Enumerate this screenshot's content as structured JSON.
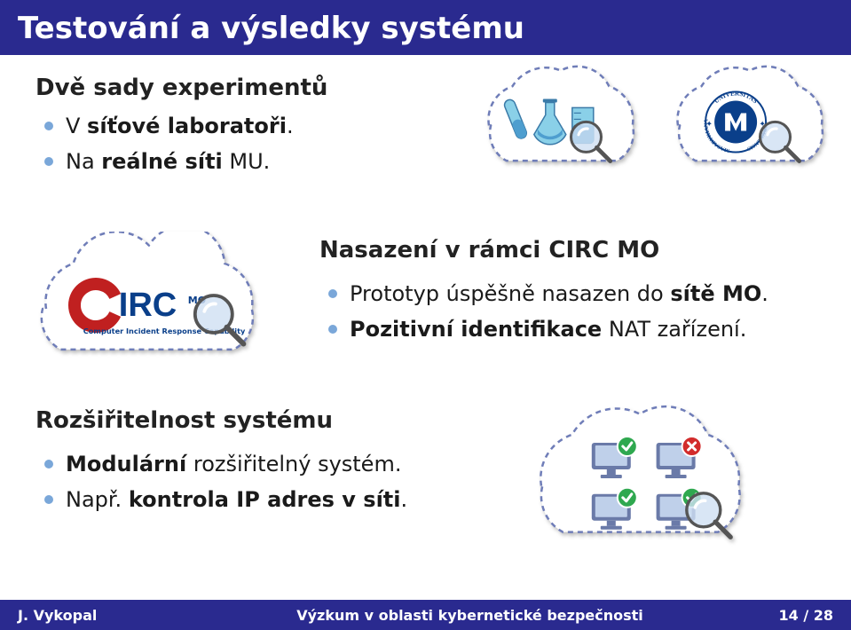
{
  "colors": {
    "header_bg": "#2a2a8f",
    "header_text": "#ffffff",
    "footer_bg": "#2a2a8f",
    "footer_text": "#ffffff",
    "body_text": "#1a1a1a",
    "bullet_color": "#7aa7d9",
    "cloud_fill": "#ffffff",
    "cloud_stroke": "#6f7db8",
    "cloud_dash": "6,5",
    "lab_blue": "#4e9ecf",
    "lab_cyan": "#8ad0e8",
    "mu_blue": "#0a3f8a",
    "circ_blue": "#0a3f8a",
    "circ_red": "#c02020",
    "magnifier_frame": "#555555",
    "magnifier_glass": "#cfe0f2",
    "monitor_fill": "#6a7aa8",
    "monitor_screen": "#bfd0ea",
    "check_green": "#2fa84f",
    "cross_red": "#d22c2c"
  },
  "title": "Testování a výsledky systému",
  "section1": {
    "heading": "Dvě sady experimentů",
    "items": [
      {
        "text_pre": "V ",
        "bold": "síťové laboratoři",
        "text_post": "."
      },
      {
        "text_pre": "Na ",
        "bold": "reálné síti",
        "text_post": " MU."
      }
    ]
  },
  "section2": {
    "heading": "Nasazení v rámci CIRC MO",
    "items": [
      {
        "text_pre": "Prototyp úspěšně nasazen do ",
        "bold": "sítě MO",
        "text_post": "."
      },
      {
        "text_pre": "",
        "bold": "Pozitivní identifikace",
        "text_post": " NAT zařízení."
      }
    ]
  },
  "section3": {
    "heading": "Rozšiřitelnost systému",
    "items": [
      {
        "text_pre": "",
        "bold": "Modulární",
        "text_post": " rozšiřitelný systém."
      },
      {
        "text_pre": "Např. ",
        "bold": "kontrola IP adres v síti",
        "text_post": "."
      }
    ]
  },
  "circ_logo": {
    "letters": "IRC",
    "mo": "MO",
    "subtitle": "Computer Incident Response Capability"
  },
  "mu_seal": {
    "top": "UNIVERSITAS",
    "side1": "MASARYKIANA",
    "side2": "BRUNENSIS",
    "letter": "M"
  },
  "footer": {
    "author": "J. Vykopal",
    "title": "Výzkum v oblasti kybernetické bezpečnosti",
    "page_cur": "14",
    "page_sep": " / ",
    "page_tot": "28"
  }
}
